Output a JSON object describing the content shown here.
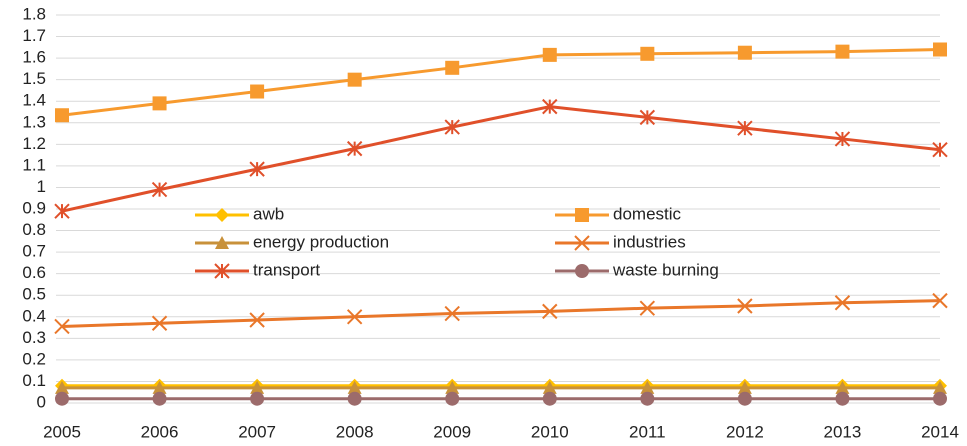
{
  "chart_data": {
    "type": "line",
    "categories": [
      "2005",
      "2006",
      "2007",
      "2008",
      "2009",
      "2010",
      "2011",
      "2012",
      "2013",
      "2014"
    ],
    "ylim": [
      0,
      1.8
    ],
    "yticks": [
      0,
      0.1,
      0.2,
      0.3,
      0.4,
      0.5,
      0.6,
      0.7,
      0.8,
      0.9,
      1,
      1.1,
      1.2,
      1.3,
      1.4,
      1.5,
      1.6,
      1.7,
      1.8
    ],
    "grid": true,
    "legend": "center",
    "series": [
      {
        "name": "awb",
        "color": "#FFC000",
        "marker": "diamond",
        "values": [
          0.08,
          0.08,
          0.08,
          0.08,
          0.08,
          0.08,
          0.08,
          0.08,
          0.08,
          0.08
        ]
      },
      {
        "name": "domestic",
        "color": "#F79A2E",
        "marker": "square",
        "values": [
          1.335,
          1.39,
          1.445,
          1.5,
          1.555,
          1.615,
          1.62,
          1.625,
          1.63,
          1.64
        ]
      },
      {
        "name": "energy production",
        "color": "#C8913A",
        "marker": "triangle",
        "values": [
          0.07,
          0.07,
          0.07,
          0.07,
          0.07,
          0.07,
          0.07,
          0.07,
          0.07,
          0.07
        ]
      },
      {
        "name": "industries",
        "color": "#E9772A",
        "marker": "x",
        "values": [
          0.355,
          0.37,
          0.385,
          0.4,
          0.415,
          0.425,
          0.44,
          0.45,
          0.465,
          0.475
        ]
      },
      {
        "name": "transport",
        "color": "#E0502A",
        "marker": "star",
        "values": [
          0.89,
          0.99,
          1.085,
          1.18,
          1.28,
          1.375,
          1.325,
          1.275,
          1.225,
          1.175
        ]
      },
      {
        "name": "waste burning",
        "color": "#9C6B6B",
        "marker": "circle",
        "values": [
          0.02,
          0.02,
          0.02,
          0.02,
          0.02,
          0.02,
          0.02,
          0.02,
          0.02,
          0.02
        ]
      }
    ]
  }
}
